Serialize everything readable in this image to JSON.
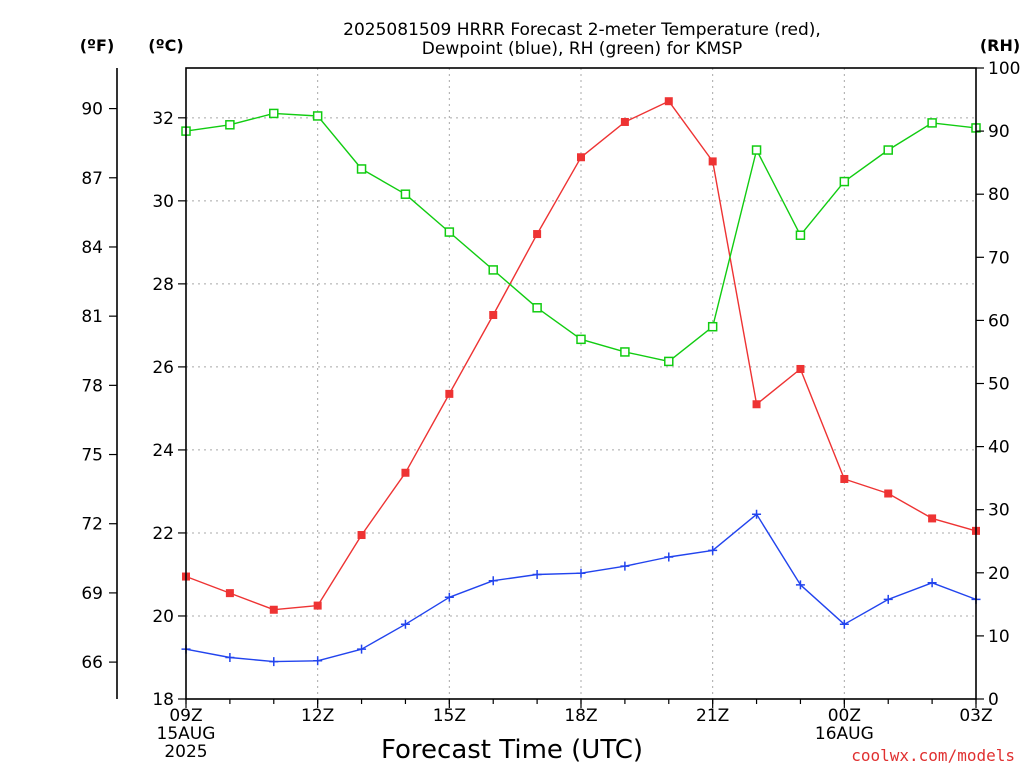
{
  "chart_data": {
    "type": "line",
    "title_line1": "2025081509 HRRR Forecast 2-meter Temperature (red),",
    "title_line2": "Dewpoint (blue), RH (green) for KMSP",
    "xlabel": "Forecast Time (UTC)",
    "credit": "coolwx.com/models",
    "left_outer_unit": "(ºF)",
    "left_inner_unit": "(ºC)",
    "right_unit": "(RH)",
    "x_hours": [
      9,
      10,
      11,
      12,
      13,
      14,
      15,
      16,
      17,
      18,
      19,
      20,
      21,
      22,
      23,
      24,
      25,
      26,
      27
    ],
    "xlim": [
      9,
      27
    ],
    "x_ticks": [
      {
        "hour": 9,
        "lines": [
          "09Z",
          "15AUG",
          "2025"
        ]
      },
      {
        "hour": 12,
        "lines": [
          "12Z"
        ]
      },
      {
        "hour": 15,
        "lines": [
          "15Z"
        ]
      },
      {
        "hour": 18,
        "lines": [
          "18Z"
        ]
      },
      {
        "hour": 21,
        "lines": [
          "21Z"
        ]
      },
      {
        "hour": 24,
        "lines": [
          "00Z",
          "16AUG"
        ]
      },
      {
        "hour": 27,
        "lines": [
          "03Z"
        ]
      }
    ],
    "celsius_ylim": [
      18,
      33.2
    ],
    "celsius_ticks": [
      "18",
      "20",
      "22",
      "24",
      "26",
      "28",
      "30",
      "32"
    ],
    "fahrenheit_ticks": [
      "66",
      "69",
      "72",
      "75",
      "78",
      "81",
      "84",
      "87",
      "90"
    ],
    "rh_ylim": [
      0,
      100
    ],
    "rh_ticks": [
      "0",
      "10",
      "20",
      "30",
      "40",
      "50",
      "60",
      "70",
      "80",
      "90",
      "100"
    ],
    "grid": true,
    "series": [
      {
        "name": "Temperature",
        "axis": "celsius",
        "color": "#ee3333",
        "marker": "filled-square",
        "values": [
          20.95,
          20.55,
          20.15,
          20.25,
          21.95,
          23.45,
          25.35,
          27.25,
          29.2,
          31.05,
          31.9,
          32.4,
          30.95,
          25.1,
          25.95,
          23.3,
          22.95,
          22.35,
          22.05
        ]
      },
      {
        "name": "Dewpoint",
        "axis": "celsius",
        "color": "#2244ee",
        "marker": "plus",
        "values": [
          19.2,
          19.0,
          18.9,
          18.92,
          19.2,
          19.8,
          20.45,
          20.85,
          21.0,
          21.03,
          21.2,
          21.42,
          21.58,
          22.45,
          20.75,
          19.8,
          20.4,
          20.8,
          20.4
        ]
      },
      {
        "name": "RH",
        "axis": "rh",
        "color": "#11cc11",
        "marker": "open-square",
        "values": [
          90,
          91,
          92.8,
          92.4,
          84,
          80,
          74,
          68,
          62,
          57,
          55,
          53.5,
          59,
          87,
          73.5,
          82,
          87,
          91.3,
          90.5
        ]
      }
    ]
  }
}
